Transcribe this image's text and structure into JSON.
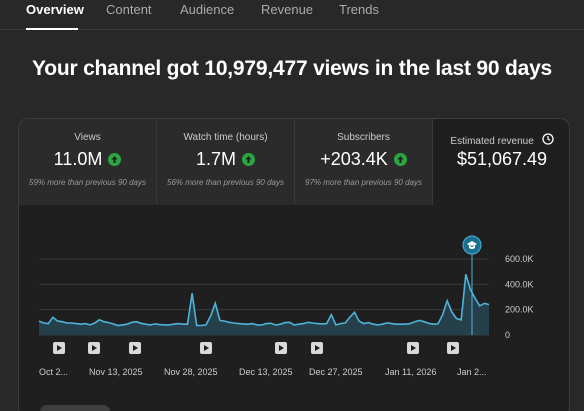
{
  "tabs": [
    {
      "label": "Overview",
      "active": true
    },
    {
      "label": "Content",
      "active": false
    },
    {
      "label": "Audience",
      "active": false
    },
    {
      "label": "Revenue",
      "active": false
    },
    {
      "label": "Trends",
      "active": false
    }
  ],
  "headline": "Your channel got 10,979,477 views in the last 90 days",
  "metrics": [
    {
      "label": "Views",
      "value": "11.0M",
      "trend": "up",
      "sub": "59% more than previous 90 days"
    },
    {
      "label": "Watch time (hours)",
      "value": "1.7M",
      "trend": "up",
      "sub": "56% more than previous 90 days"
    },
    {
      "label": "Subscribers",
      "value": "+203.4K",
      "trend": "up",
      "sub": "97% more than previous 90 days"
    },
    {
      "label": "Estimated revenue",
      "value": "$51,067.49",
      "trend": "",
      "sub": "",
      "icon": "clock-icon"
    }
  ],
  "chart_data": {
    "type": "area",
    "series_color": "#4fb3d9",
    "fill_color": "#25404b",
    "y_ticks": [
      "600.0K",
      "400.0K",
      "200.0K",
      "0"
    ],
    "ylim": [
      0,
      600000
    ],
    "x_tick_labels": [
      "Oct 2...",
      "Nov 13, 2025",
      "Nov 28, 2025",
      "Dec 13, 2025",
      "Dec 27, 2025",
      "Jan 11, 2026",
      "Jan 2..."
    ],
    "values": [
      110000,
      95000,
      90000,
      140000,
      110000,
      105000,
      95000,
      95000,
      90000,
      85000,
      90000,
      80000,
      95000,
      120000,
      105000,
      98000,
      88000,
      75000,
      80000,
      85000,
      100000,
      105000,
      92000,
      85000,
      80000,
      88000,
      82000,
      80000,
      80000,
      85000,
      90000,
      85000,
      85000,
      330000,
      75000,
      75000,
      80000,
      150000,
      250000,
      115000,
      110000,
      100000,
      95000,
      90000,
      88000,
      85000,
      90000,
      80000,
      80000,
      90000,
      92000,
      78000,
      85000,
      98000,
      100000,
      80000,
      85000,
      90000,
      100000,
      95000,
      90000,
      88000,
      90000,
      160000,
      80000,
      90000,
      95000,
      140000,
      180000,
      110000,
      90000,
      98000,
      86000,
      80000,
      85000,
      95000,
      90000,
      85000,
      85000,
      85000,
      90000,
      105000,
      115000,
      105000,
      92000,
      85000,
      88000,
      160000,
      270000,
      180000,
      130000,
      120000,
      480000,
      360000,
      290000,
      230000,
      250000,
      240000
    ],
    "markers": 8,
    "peak_marker_icon": "graduation-cap-icon"
  },
  "icons": {
    "trend_up": "arrow-up-circle-icon",
    "video_marker": "play-square-icon"
  }
}
